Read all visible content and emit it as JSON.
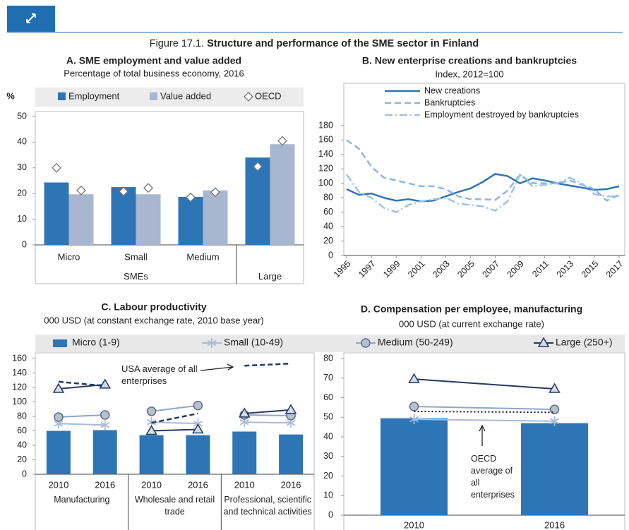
{
  "figure_label": "Figure 17.1.",
  "title": "Structure and performance of the SME sector in Finland",
  "chart_data": [
    {
      "type": "bar",
      "title": "A. SME employment and value added",
      "subtitle": "Percentage of total business economy, 2016",
      "ylabel": "%",
      "categories": [
        "Micro",
        "Small",
        "Medium",
        null
      ],
      "groups": [
        {
          "name": "SMEs",
          "size": 3
        },
        {
          "name": "Large",
          "size": 1
        }
      ],
      "series": [
        {
          "name": "Employment",
          "color": "#2e75b6",
          "values": [
            24.3,
            22.5,
            18.7,
            34
          ],
          "oecd": [
            30,
            20.8,
            18.5,
            30.5
          ]
        },
        {
          "name": "Value added",
          "color": "#a9b6cf",
          "values": [
            19.7,
            19.7,
            21.2,
            39.2
          ],
          "oecd": [
            21.2,
            22.2,
            20.5,
            40.5
          ]
        }
      ],
      "oecd_name": "OECD",
      "ylim": [
        0,
        50
      ],
      "yticks": [
        0,
        10,
        20,
        30,
        40,
        50
      ]
    },
    {
      "type": "line",
      "title": "B. New enterprise creations and bankruptcies",
      "subtitle": "Index, 2012=100",
      "x": [
        1995,
        1996,
        1997,
        1998,
        1999,
        2000,
        2001,
        2002,
        2003,
        2004,
        2005,
        2006,
        2007,
        2008,
        2009,
        2010,
        2011,
        2012,
        2013,
        2014,
        2015,
        2016,
        2017
      ],
      "xlim": [
        1995,
        2017
      ],
      "xticks": [
        1995,
        1997,
        1999,
        2001,
        2003,
        2005,
        2007,
        2009,
        2011,
        2013,
        2015,
        2017
      ],
      "ylim": [
        0,
        180
      ],
      "yticks": [
        0,
        20,
        40,
        60,
        80,
        100,
        120,
        140,
        160,
        180
      ],
      "series": [
        {
          "name": "New creations",
          "color": "#2e75b6",
          "dash": "solid",
          "values": [
            92,
            84,
            86,
            80,
            76,
            78,
            75,
            76,
            82,
            88,
            93,
            102,
            113,
            110,
            100,
            107,
            104,
            100,
            97,
            94,
            91,
            92,
            96
          ]
        },
        {
          "name": "Bankruptcies",
          "color": "#8eb4e3",
          "dash": "dashed",
          "values": [
            160,
            148,
            123,
            108,
            104,
            100,
            96,
            96,
            92,
            82,
            78,
            78,
            77,
            90,
            112,
            100,
            100,
            100,
            104,
            98,
            92,
            76,
            84
          ]
        },
        {
          "name": "Employment destroyed by bankruptcies",
          "color": "#9dc3e6",
          "dash": "dashdot",
          "values": [
            112,
            88,
            80,
            66,
            60,
            70,
            75,
            78,
            80,
            72,
            70,
            68,
            62,
            75,
            112,
            96,
            98,
            100,
            108,
            100,
            85,
            82,
            82
          ]
        }
      ]
    },
    {
      "type": "bar_dot",
      "title": "C. Labour productivity",
      "subtitle": "000 USD (at constant exchange rate, 2010 base year)",
      "categories": [
        "2010",
        "2016",
        "2010",
        "2016",
        "2010",
        "2016"
      ],
      "groups": [
        {
          "name": "Manufacturing",
          "size": 2
        },
        {
          "name": "Wholesale and retail trade",
          "size": 2
        },
        {
          "name": "Professional, scientific and technical activities",
          "size": 2
        }
      ],
      "ylim": [
        0,
        160
      ],
      "yticks": [
        0,
        20,
        40,
        60,
        80,
        100,
        120,
        140,
        160
      ],
      "series": [
        {
          "name": "Micro (1-9)",
          "color": "#2e75b6",
          "kind": "bar",
          "values": [
            60,
            61,
            54,
            54,
            59,
            55
          ]
        },
        {
          "name": "Small (10-49)",
          "color": "#a9bcd6",
          "kind": "star",
          "values": [
            70,
            68,
            72,
            70,
            72,
            71
          ]
        },
        {
          "name": "Medium (50-249)",
          "color": "#8ea6c8",
          "kind": "circle",
          "values": [
            79,
            82,
            87,
            95,
            82,
            81
          ]
        },
        {
          "name": "Large (250+)",
          "color": "#243a5e",
          "kind": "triangle",
          "values": [
            118,
            124,
            60,
            62,
            84,
            89
          ]
        },
        {
          "name": "USA average of all enterprises",
          "color": "#243a5e",
          "kind": "dashed",
          "values": [
            128,
            122,
            71,
            84,
            150,
            153
          ]
        }
      ]
    },
    {
      "type": "bar_dot",
      "title": "D. Compensation per employee, manufacturing",
      "subtitle": "000 USD (at current exchange rate)",
      "categories": [
        "2010",
        "2016"
      ],
      "ylim": [
        0,
        80
      ],
      "yticks": [
        0,
        10,
        20,
        30,
        40,
        50,
        60,
        70,
        80
      ],
      "series": [
        {
          "color": "#2e75b6",
          "kind": "bar",
          "values": [
            49.5,
            47
          ]
        },
        {
          "color": "#a9bcd6",
          "kind": "star",
          "values": [
            49,
            48
          ]
        },
        {
          "color": "#8ea6c8",
          "kind": "circle",
          "values": [
            55.5,
            54
          ]
        },
        {
          "color": "#243a5e",
          "kind": "triangle",
          "values": [
            69.5,
            64.5
          ]
        },
        {
          "name": "OECD average of all enterprises",
          "color": "#111111",
          "kind": "dotted",
          "values": [
            53,
            52.5
          ]
        }
      ]
    }
  ]
}
